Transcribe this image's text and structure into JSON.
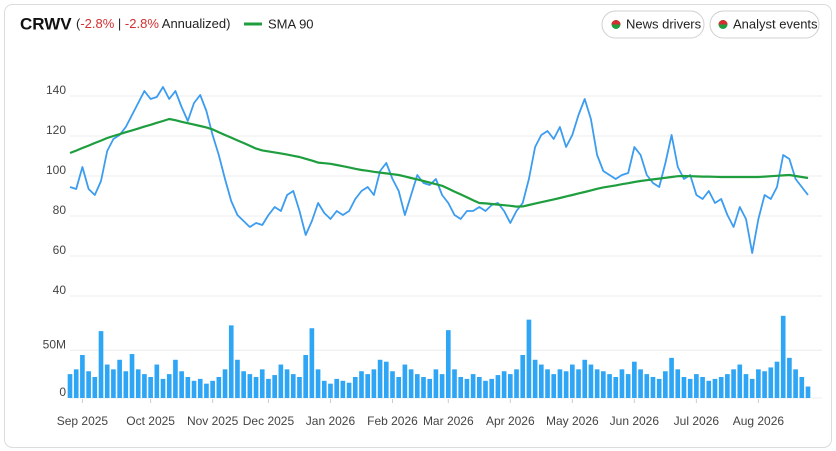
{
  "chart_data": {
    "type": "line",
    "title": "CRWV",
    "summary": [
      "(",
      "-2.8%",
      " | ",
      "-2.8%",
      " Annualized)"
    ],
    "buttons": [
      "News drivers",
      "Analyst events"
    ],
    "ylim": [
      35,
      155
    ],
    "yticks": [
      40,
      60,
      80,
      100,
      120,
      140
    ],
    "xlim": [
      0,
      119
    ],
    "xticks": [
      {
        "value": 2,
        "label": "Sep 2025"
      },
      {
        "value": 13,
        "label": "Oct 2025"
      },
      {
        "value": 23,
        "label": "Nov 2025"
      },
      {
        "value": 32,
        "label": "Dec 2025"
      },
      {
        "value": 42,
        "label": "Jan 2026"
      },
      {
        "value": 52,
        "label": "Feb 2026"
      },
      {
        "value": 61,
        "label": "Mar 2026"
      },
      {
        "value": 71,
        "label": "Apr 2026"
      },
      {
        "value": 81,
        "label": "May 2026"
      },
      {
        "value": 91,
        "label": "Jun 2026"
      },
      {
        "value": 101,
        "label": "Jul 2026"
      },
      {
        "value": 111,
        "label": "Aug 2026"
      }
    ],
    "grid": true,
    "series": [
      {
        "color": "#3b9cf0",
        "values": [
          92,
          91,
          102,
          91,
          88,
          95,
          110,
          116,
          118,
          122,
          128,
          134,
          140,
          136,
          137,
          142,
          136,
          140,
          132,
          125,
          134,
          138,
          130,
          118,
          108,
          96,
          85,
          78,
          75,
          72,
          74,
          73,
          78,
          82,
          80,
          88,
          90,
          80,
          68,
          75,
          84,
          79,
          76,
          80,
          78,
          80,
          86,
          90,
          92,
          88,
          100,
          104,
          96,
          90,
          78,
          88,
          98,
          94,
          93,
          96,
          88,
          84,
          78,
          76,
          80,
          80,
          82,
          80,
          83,
          84,
          80,
          74,
          80,
          84,
          96,
          112,
          118,
          120,
          116,
          122,
          112,
          118,
          128,
          136,
          126,
          108,
          100,
          98,
          96,
          98,
          99,
          112,
          108,
          98,
          94,
          92,
          104,
          118,
          102,
          96,
          98,
          88,
          86,
          90,
          84,
          86,
          78,
          72,
          82,
          76,
          59,
          76,
          88,
          86,
          92,
          108,
          106,
          96,
          92,
          88
        ]
      },
      {
        "name": "SMA 90",
        "color": "#1e9e3e",
        "values": [
          109,
          110.2,
          111.5,
          112.7,
          114,
          115.2,
          116.5,
          117.5,
          118.4,
          119.4,
          120.3,
          121.2,
          122.2,
          123.1,
          124.1,
          125,
          126,
          125.4,
          124.6,
          123.9,
          123.2,
          122.5,
          121.8,
          120.8,
          119.4,
          118,
          116.7,
          115.3,
          114,
          112.6,
          111.2,
          110.3,
          109.8,
          109.3,
          108.8,
          108.2,
          107.6,
          107,
          106.1,
          105.2,
          104.2,
          103.9,
          103.6,
          103,
          102.4,
          101.8,
          101.1,
          100.5,
          100.1,
          99.6,
          99.2,
          98.8,
          98.4,
          98,
          97.3,
          96.5,
          95.8,
          95,
          94.2,
          93.4,
          92.6,
          91.2,
          89.7,
          88.3,
          86.9,
          85.4,
          84,
          83.8,
          83.5,
          83.2,
          82.9,
          82.6,
          82.2,
          82.3,
          83,
          83.7,
          84.4,
          85.1,
          85.8,
          86.5,
          87.3,
          88,
          88.8,
          89.5,
          90.3,
          91.1,
          91.8,
          92.3,
          92.8,
          93.4,
          93.9,
          94.5,
          95,
          95.4,
          95.8,
          96.2,
          96.6,
          97,
          97.4,
          97.5,
          97.4,
          97.3,
          97.2,
          97.2,
          97.1,
          97,
          97,
          97,
          97,
          97,
          97,
          97,
          97.2,
          97.4,
          97.6,
          97.8,
          98,
          97.5,
          97,
          96.5
        ]
      }
    ],
    "volume": {
      "color": "#2ea6f5",
      "ylim": [
        0,
        90000000
      ],
      "yticks": [
        0,
        {
          "value": 50000000,
          "label": "50M"
        }
      ],
      "values": [
        25000000,
        30000000,
        45000000,
        28000000,
        22000000,
        70000000,
        35000000,
        30000000,
        40000000,
        28000000,
        46000000,
        30000000,
        25000000,
        22000000,
        35000000,
        20000000,
        25000000,
        40000000,
        28000000,
        22000000,
        18000000,
        20000000,
        15000000,
        18000000,
        22000000,
        30000000,
        76000000,
        40000000,
        28000000,
        25000000,
        22000000,
        30000000,
        20000000,
        24000000,
        35000000,
        30000000,
        25000000,
        22000000,
        45000000,
        73000000,
        30000000,
        18000000,
        15000000,
        20000000,
        18000000,
        16000000,
        22000000,
        28000000,
        25000000,
        30000000,
        40000000,
        38000000,
        28000000,
        22000000,
        35000000,
        30000000,
        25000000,
        22000000,
        20000000,
        30000000,
        25000000,
        71000000,
        30000000,
        22000000,
        20000000,
        25000000,
        22000000,
        18000000,
        20000000,
        24000000,
        28000000,
        25000000,
        30000000,
        45000000,
        82000000,
        40000000,
        35000000,
        30000000,
        25000000,
        30000000,
        28000000,
        35000000,
        30000000,
        40000000,
        35000000,
        30000000,
        28000000,
        25000000,
        22000000,
        30000000,
        25000000,
        38000000,
        30000000,
        25000000,
        22000000,
        20000000,
        28000000,
        42000000,
        30000000,
        22000000,
        20000000,
        25000000,
        22000000,
        18000000,
        20000000,
        22000000,
        25000000,
        30000000,
        35000000,
        25000000,
        20000000,
        30000000,
        28000000,
        32000000,
        38000000,
        86000000,
        42000000,
        30000000,
        22000000,
        12000000
      ]
    }
  }
}
